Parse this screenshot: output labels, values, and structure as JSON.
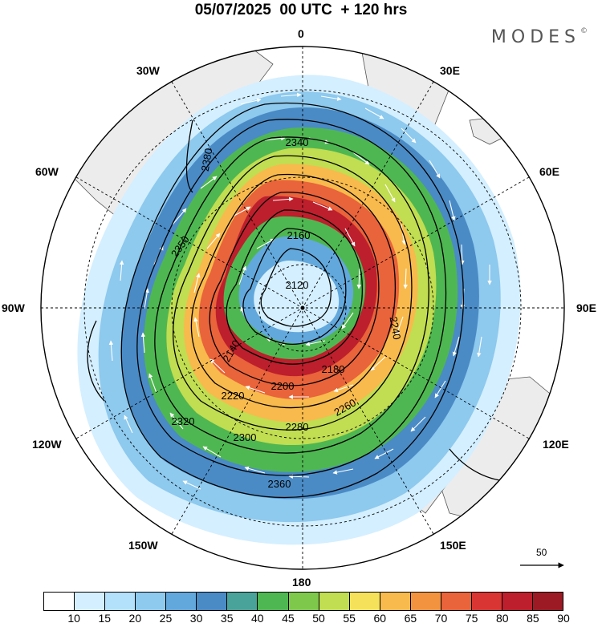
{
  "header": {
    "title": "05/07/2025  00 UTC  + 120 hrs",
    "logo": "MODES",
    "logo_mark": "©"
  },
  "map": {
    "projection": "south polar stereographic",
    "longitude_labels": [
      "0",
      "30E",
      "60E",
      "90E",
      "120E",
      "150E",
      "180",
      "150W",
      "120W",
      "90W",
      "60W",
      "30W"
    ],
    "contour_labels": [
      "2120",
      "2140",
      "2160",
      "2180",
      "2200",
      "2220",
      "2240",
      "2260",
      "2280",
      "2300",
      "2320",
      "2340",
      "2350",
      "2360",
      "2380"
    ],
    "reference_vector": "50"
  },
  "colorbar": {
    "colors": [
      "#ffffff",
      "#d4efff",
      "#b3e0fa",
      "#8ec9ee",
      "#62a8dc",
      "#4a8bc6",
      "#4aa39a",
      "#4fb751",
      "#7ec84b",
      "#c1dd51",
      "#f6e25a",
      "#f8ba4c",
      "#f2943f",
      "#e9633b",
      "#d93633",
      "#bd1f2c",
      "#9c1a24"
    ],
    "tick_labels": [
      "10",
      "15",
      "20",
      "25",
      "30",
      "35",
      "40",
      "45",
      "50",
      "55",
      "60",
      "65",
      "70",
      "75",
      "80",
      "85",
      "90"
    ]
  }
}
